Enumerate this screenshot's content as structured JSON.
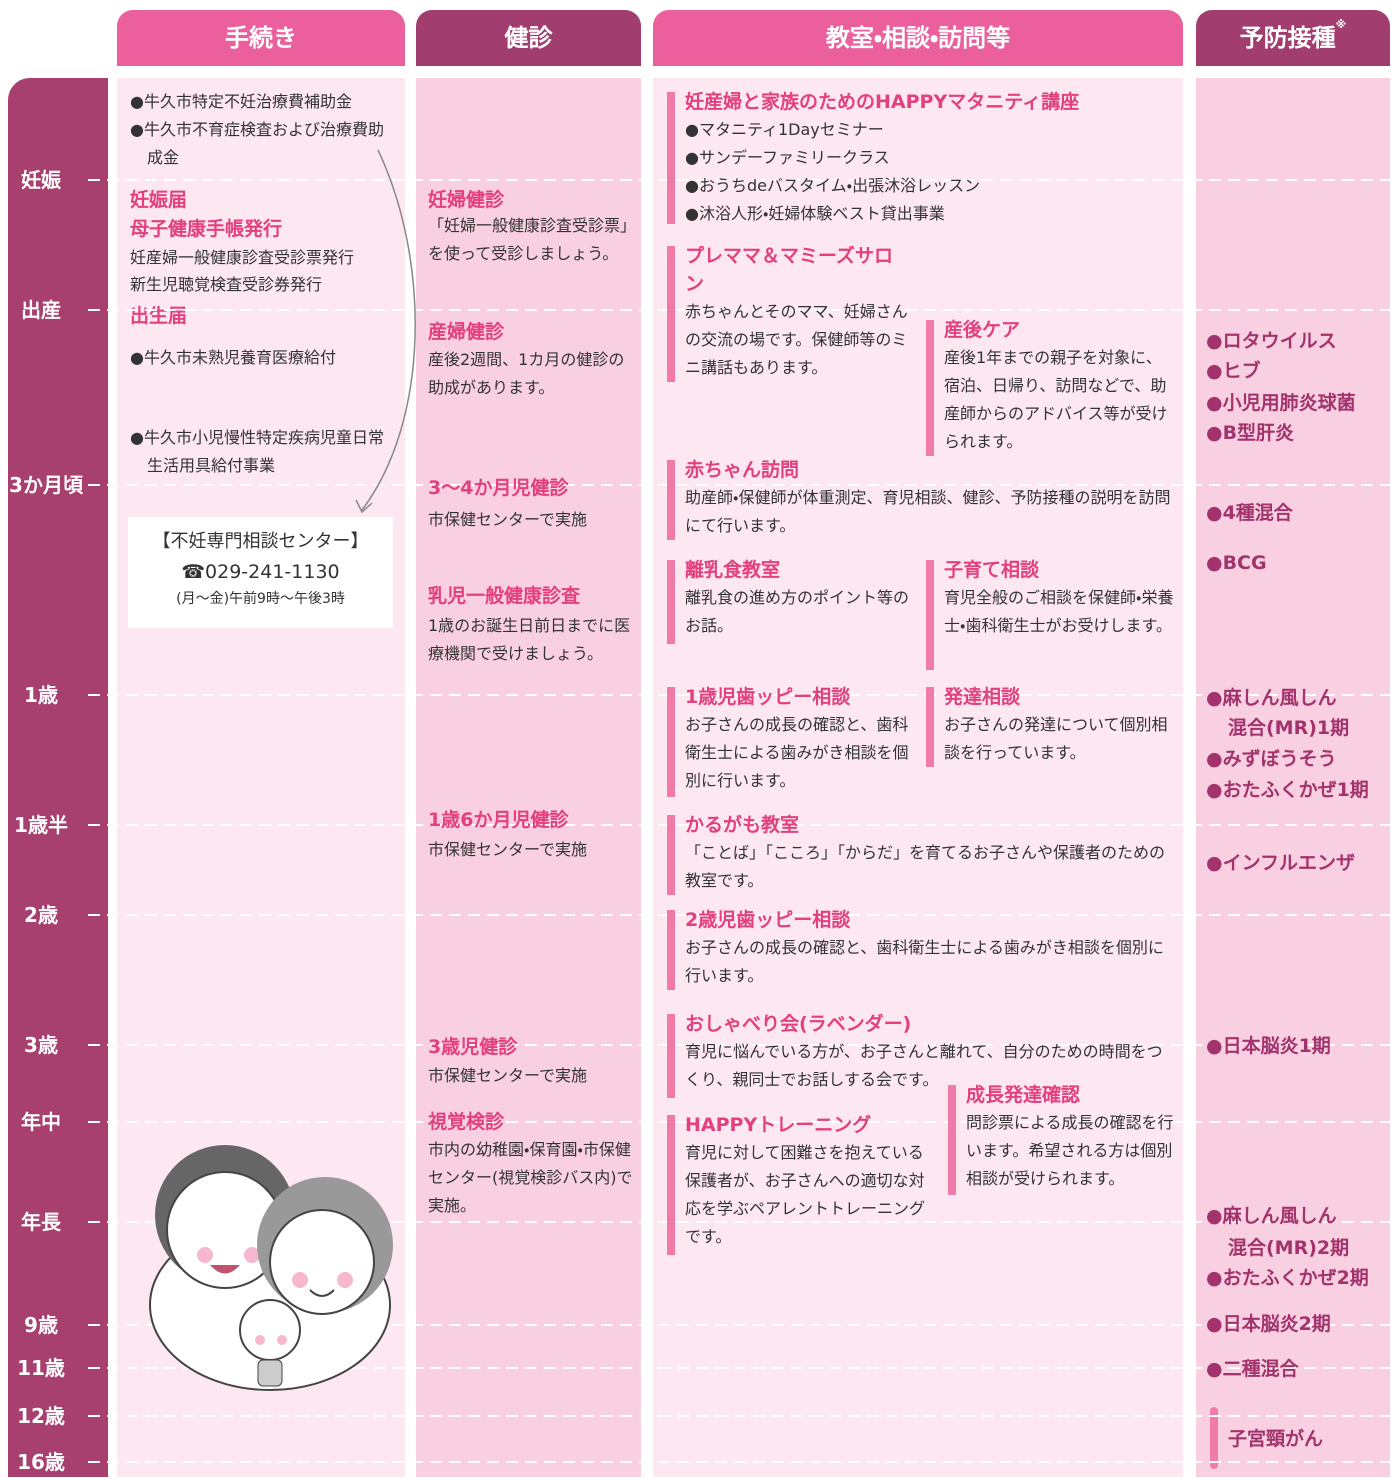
{
  "headers": [
    "手続き",
    "健診",
    "教室・相談・訪問等",
    "予防接種"
  ],
  "header_note": "※",
  "ages": [
    "妊娠",
    "出産",
    "3か月頃",
    "1歳",
    "1歳半",
    "2歳",
    "3歳",
    "年中",
    "年長",
    "9歳",
    "11歳",
    "12歳",
    "16歳"
  ],
  "procedures": [
    "●牛久市特定不妊治療費補助金",
    "●牛久市不育症検査および治療費助成金",
    "妊娠届",
    "母子健康手帳発行",
    "妊産婦一般健康診査受診票発行",
    "新生児聴覚検査受診券発行",
    "出生届",
    "●牛久市未熟児養育医療給付",
    "●牛久市小児慢性特定疾病児童日常生活用具給付事業"
  ],
  "consultation_center": {
    "name": "【不妊専門相談センター】",
    "phone": "☎029-241-1130",
    "hours": "(月〜金)午前9時〜午後3時"
  },
  "checkups": [
    {
      "title": "妊婦健診",
      "text": "「妊婦一般健康診査受診票」を使って受診しましょう。"
    },
    {
      "title": "産婦健診",
      "text": "産後2週間、1カ月の健診の助成があります。"
    },
    {
      "title": "3〜4か月児健診",
      "text": "市保健センターで実施"
    },
    {
      "title": "乳児一般健康診査",
      "text": "1歳のお誕生日前日までに医療機関で受けましょう。"
    },
    {
      "title": "1歳6か月児健診",
      "text": "市保健センターで実施"
    },
    {
      "title": "3歳児健診",
      "text": "市保健センターで実施"
    },
    {
      "title": "視覚検診",
      "text": "市内の幼稚園・保育園・市保健センター(視覚検診バス内)で実施。"
    }
  ],
  "classes": [
    {
      "title": "妊産婦と家族のためのHAPPYマタニティ講座",
      "items": [
        "●マタニティ1Dayセミナー",
        "●サンデーファミリークラス",
        "●おうちdeバスタイム・出張沐浴レッスン",
        "●沐浴人形・妊婦体験ベスト貸出事業"
      ]
    },
    {
      "title": "プレママ＆マミーズサロン",
      "text": "赤ちゃんとそのママ、妊婦さんの交流の場です。保健師等のミニ講話もあります。"
    },
    {
      "title": "産後ケア",
      "text": "産後1年までの親子を対象に、宿泊、日帰り、訪問などで、助産師からのアドバイス等が受けられます。"
    },
    {
      "title": "赤ちゃん訪問",
      "text": "助産師・保健師が体重測定、育児相談、健診、予防接種の説明を訪問にて行います。"
    },
    {
      "title": "離乳食教室",
      "text": "離乳食の進め方のポイント等のお話。"
    },
    {
      "title": "子育て相談",
      "text": "育児全般のご相談を保健師・栄養士・歯科衛生士がお受けします。"
    },
    {
      "title": "1歳児歯ッピー相談",
      "text": "お子さんの成長の確認と、歯科衛生士による歯みがき相談を個別に行います。"
    },
    {
      "title": "発達相談",
      "text": "お子さんの発達について個別相談を行っています。"
    },
    {
      "title": "かるがも教室",
      "text": "「ことば」「こころ」「からだ」を育てるお子さんや保護者のための教室です。"
    },
    {
      "title": "2歳児歯ッピー相談",
      "text": "お子さんの成長の確認と、歯科衛生士による歯みがき相談を個別に行います。"
    },
    {
      "title": "おしゃべり会(ラベンダー)",
      "text": "育児に悩んでいる方が、お子さんと離れて、自分のための時間をつくり、親同士でお話しする会です。"
    },
    {
      "title": "HAPPYトレーニング",
      "text": "育児に対して困難さを抱えている保護者が、お子さんへの適切な対応を学ぶペアレントトレーニングです。"
    },
    {
      "title": "成長発達確認",
      "text": "問診票による成長の確認を行います。希望される方は個別相談が受けられます。"
    }
  ],
  "vaccines": [
    "●ロタウイルス",
    "●ヒブ",
    "●小児用肺炎球菌",
    "●B型肝炎",
    "●4種混合",
    "●BCG",
    "●麻しん風しん",
    "混合(MR)1期",
    "●みずぼうそう",
    "●おたふくかぜ1期",
    "●インフルエンザ",
    "●日本脳炎1期",
    "●麻しん風しん",
    "混合(MR)2期",
    "●おたふくかぜ2期",
    "●日本脳炎2期",
    "●二種混合",
    "子宮頸がん"
  ]
}
